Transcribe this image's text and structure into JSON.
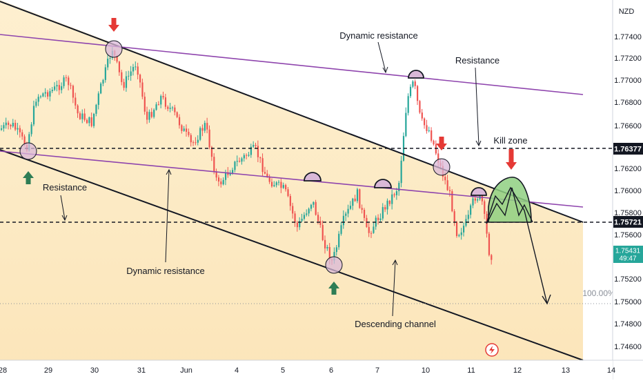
{
  "chart_data": {
    "type": "candlestick",
    "currency": "NZD",
    "y_ticks": [
      "1.77400",
      "1.77200",
      "1.77000",
      "1.76800",
      "1.76600",
      "1.76200",
      "1.76000",
      "1.75800",
      "1.75600",
      "1.75200",
      "1.75000",
      "1.74800",
      "1.74600"
    ],
    "x_ticks": [
      "28",
      "29",
      "30",
      "31",
      "Jun",
      "4",
      "5",
      "6",
      "7",
      "10",
      "11",
      "12",
      "13",
      "14"
    ],
    "price_labels": {
      "upper_level": "1.76377",
      "lower_level": "1.75721",
      "current_price": "1.75431",
      "countdown": "49:47"
    },
    "fib_label": "100.00%",
    "annotations": {
      "dynamic_resistance_top": "Dynamic resistance",
      "resistance_right": "Resistance",
      "kill_zone": "Kill zone",
      "resistance_left": "Resistance",
      "dynamic_resistance_bottom": "Dynamic resistance",
      "descending_channel": "Descending channel"
    },
    "levels": {
      "horizontal_resistance_1": 1.76377,
      "horizontal_resistance_2": 1.75721,
      "fib_100": 1.75
    },
    "colors": {
      "up_candle": "#26a69a",
      "down_candle": "#ef5350",
      "channel_fill": "#fdeac0",
      "trendline": "#131722",
      "dynamic_line": "#8e44ad",
      "kill_zone_fill": "#8fd081",
      "arrow_red": "#e53935",
      "arrow_green": "#2e7d55",
      "touch_circle": "#d9b8d8",
      "current_price_label": "#26a69a"
    }
  }
}
